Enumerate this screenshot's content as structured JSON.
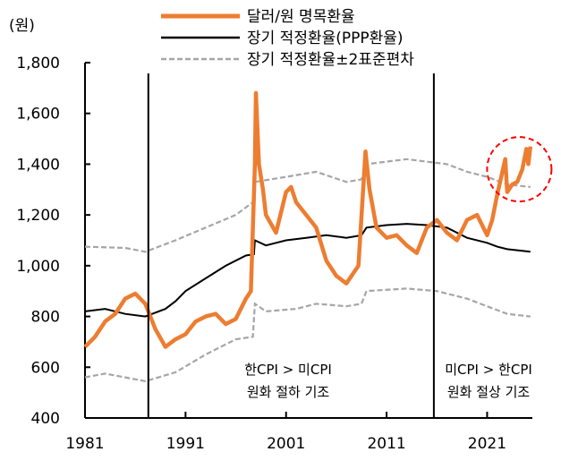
{
  "chart_data": {
    "type": "line",
    "ylabel": "(원)",
    "ylim": [
      400,
      1800
    ],
    "yticks": [
      "1,800",
      "1,600",
      "1,400",
      "1,200",
      "1,000",
      "800",
      "600",
      "400"
    ],
    "ytick_values": [
      1800,
      1600,
      1400,
      1200,
      1000,
      800,
      600,
      400
    ],
    "xlim": [
      1981,
      2025.5
    ],
    "xticks": [
      "1981",
      "1991",
      "2001",
      "2011",
      "2021"
    ],
    "xtick_values": [
      1981,
      1991,
      2001,
      2011,
      2021
    ],
    "grid": false,
    "legend_position": "top",
    "legend": [
      "달러/원 명목환율",
      "장기 적정환율(PPP환율)",
      "장기 적정환율±2표준편차"
    ],
    "colors": {
      "nominal": "#ED7D31",
      "ppp": "#000000",
      "band": "#A6A6A6",
      "highlight": "#FF0000"
    },
    "vertical_lines": [
      1987.3,
      2015.7
    ],
    "annotations": [
      {
        "line1": "한CPI > 미CPI",
        "line2": "원화 절하 기조"
      },
      {
        "line1": "미CPI > 한CPI",
        "line2": "원화 절상 기조"
      }
    ],
    "highlight_circle": {
      "x": 2024.2,
      "y": 1380
    },
    "series": [
      {
        "name": "달러/원 명목환율",
        "x": [
          1981,
          1982,
          1983,
          1984,
          1985,
          1986,
          1987,
          1988,
          1989,
          1990,
          1991,
          1992,
          1993,
          1994,
          1995,
          1996,
          1997,
          1997.5,
          1997.9,
          1998.0,
          1998.3,
          1998.7,
          1999,
          2000,
          2001,
          2001.5,
          2002,
          2003,
          2004,
          2005,
          2006,
          2007,
          2008.2,
          2008.9,
          2009.3,
          2010,
          2011,
          2012,
          2013,
          2014,
          2015,
          2016,
          2017,
          2018,
          2019,
          2020,
          2021,
          2021.5,
          2022,
          2022.8,
          2023,
          2023.5,
          2024,
          2024.5,
          2024.9,
          2025.1,
          2025.3
        ],
        "y": [
          680,
          720,
          780,
          810,
          870,
          890,
          850,
          750,
          680,
          710,
          730,
          780,
          800,
          810,
          770,
          790,
          870,
          900,
          1400,
          1680,
          1400,
          1300,
          1200,
          1130,
          1290,
          1310,
          1250,
          1200,
          1150,
          1020,
          960,
          930,
          1000,
          1450,
          1300,
          1150,
          1110,
          1120,
          1080,
          1050,
          1150,
          1180,
          1130,
          1100,
          1180,
          1200,
          1120,
          1180,
          1280,
          1420,
          1290,
          1320,
          1330,
          1380,
          1460,
          1400,
          1470
        ]
      },
      {
        "name": "장기 적정환율(PPP환율)",
        "x": [
          1981,
          1983,
          1985,
          1987,
          1989,
          1990,
          1991,
          1993,
          1995,
          1997,
          1997.8,
          1997.9,
          1999,
          2001,
          2003,
          2005,
          2007,
          2008.5,
          2009,
          2011,
          2013,
          2015,
          2017,
          2019,
          2021,
          2022,
          2023,
          2025.3
        ],
        "y": [
          820,
          830,
          810,
          800,
          830,
          860,
          900,
          950,
          1000,
          1040,
          1045,
          1100,
          1080,
          1100,
          1110,
          1120,
          1110,
          1120,
          1150,
          1160,
          1165,
          1160,
          1150,
          1110,
          1090,
          1075,
          1065,
          1055
        ]
      },
      {
        "name": "장기 적정환율+2표준편차",
        "x": [
          1981,
          1985,
          1987,
          1990,
          1993,
          1996,
          1997.7,
          1997.9,
          2001,
          2004,
          2007,
          2008.5,
          2009,
          2013,
          2015,
          2017,
          2019,
          2021,
          2023,
          2025.3
        ],
        "y": [
          1075,
          1070,
          1055,
          1100,
          1150,
          1200,
          1250,
          1330,
          1350,
          1370,
          1330,
          1340,
          1400,
          1420,
          1410,
          1400,
          1370,
          1350,
          1320,
          1310
        ]
      },
      {
        "name": "장기 적정환율-2표준편차",
        "x": [
          1981,
          1983,
          1987,
          1990,
          1993,
          1996,
          1997.7,
          1997.9,
          1999,
          2002,
          2004,
          2007,
          2008.5,
          2009,
          2013,
          2016,
          2019,
          2021,
          2023,
          2025.3
        ],
        "y": [
          560,
          575,
          545,
          580,
          650,
          710,
          720,
          850,
          820,
          830,
          850,
          840,
          850,
          900,
          910,
          900,
          870,
          840,
          810,
          800
        ]
      }
    ]
  }
}
